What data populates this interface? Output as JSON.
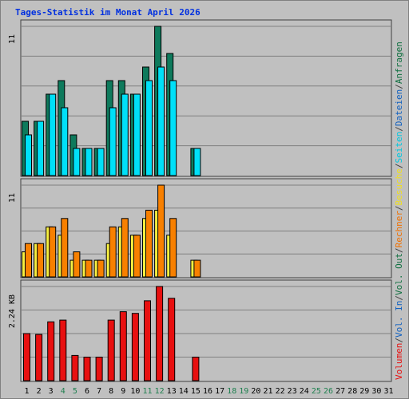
{
  "chart_data": {
    "type": "bar",
    "title": "Tages-Statistik im Monat April 2026",
    "categories": [
      "1",
      "2",
      "3",
      "4",
      "5",
      "6",
      "7",
      "8",
      "9",
      "10",
      "11",
      "12",
      "13",
      "14",
      "15",
      "16",
      "17",
      "18",
      "19",
      "20",
      "21",
      "22",
      "23",
      "24",
      "25",
      "26",
      "27",
      "28",
      "29",
      "30",
      "31"
    ],
    "weekend_days": [
      "4",
      "5",
      "11",
      "12",
      "18",
      "19",
      "25",
      "26"
    ],
    "panels": [
      {
        "id": "top",
        "ymax_label": "11",
        "ymax": 11,
        "series": [
          {
            "name": "Anfragen",
            "color": "#0e7a5c",
            "values": [
              4,
              4,
              6,
              7,
              3,
              2,
              2,
              7,
              7,
              6,
              8,
              11,
              9,
              0,
              2,
              0,
              0,
              0,
              0,
              0,
              0,
              0,
              0,
              0,
              0,
              0,
              0,
              0,
              0,
              0,
              0
            ]
          },
          {
            "name": "Dateien",
            "color": "#00e0f8",
            "values": [
              3,
              4,
              6,
              5,
              2,
              2,
              2,
              5,
              6,
              6,
              7,
              8,
              7,
              0,
              2,
              0,
              0,
              0,
              0,
              0,
              0,
              0,
              0,
              0,
              0,
              0,
              0,
              0,
              0,
              0,
              0
            ]
          }
        ]
      },
      {
        "id": "middle",
        "ymax_label": "11",
        "ymax": 11,
        "series": [
          {
            "name": "Besuche",
            "color": "#f8f040",
            "values": [
              3,
              4,
              6,
              5,
              2,
              2,
              2,
              4,
              6,
              5,
              7,
              8,
              5,
              0,
              2,
              0,
              0,
              0,
              0,
              0,
              0,
              0,
              0,
              0,
              0,
              0,
              0,
              0,
              0,
              0,
              0
            ]
          },
          {
            "name": "Rechner",
            "color": "#f88000",
            "values": [
              4,
              4,
              6,
              7,
              3,
              2,
              2,
              6,
              7,
              5,
              8,
              11,
              7,
              0,
              2,
              0,
              0,
              0,
              0,
              0,
              0,
              0,
              0,
              0,
              0,
              0,
              0,
              0,
              0,
              0,
              0
            ]
          }
        ]
      },
      {
        "id": "bottom",
        "ymax_label": "2.24 KB",
        "ymax": 2.24,
        "series": [
          {
            "name": "Volumen",
            "color": "#e81010",
            "values": [
              1.12,
              1.1,
              1.4,
              1.44,
              0.6,
              0.56,
              0.56,
              1.44,
              1.64,
              1.6,
              1.9,
              2.24,
              1.96,
              0,
              0.56,
              0,
              0,
              0,
              0,
              0,
              0,
              0,
              0,
              0,
              0,
              0,
              0,
              0,
              0,
              0,
              0
            ]
          }
        ]
      }
    ],
    "right_legend": [
      {
        "text": "Volumen",
        "color": "#e81010"
      },
      {
        "text": "/",
        "color": "#404040"
      },
      {
        "text": "Vol. In",
        "color": "#1060c0"
      },
      {
        "text": "/",
        "color": "#404040"
      },
      {
        "text": "Vol. Out",
        "color": "#107040"
      },
      {
        "text": "/",
        "color": "#404040"
      },
      {
        "text": "Rechner",
        "color": "#f07000"
      },
      {
        "text": "/",
        "color": "#404040"
      },
      {
        "text": "Besuche",
        "color": "#f0e020"
      },
      {
        "text": "/",
        "color": "#404040"
      },
      {
        "text": "Seiten",
        "color": "#00c8e0"
      },
      {
        "text": "/",
        "color": "#404040"
      },
      {
        "text": "Dateien",
        "color": "#1060c0"
      },
      {
        "text": "/",
        "color": "#404040"
      },
      {
        "text": "Anfragen",
        "color": "#107040"
      }
    ],
    "colors": {
      "title": "#0030e0",
      "weekday_label": "#000000",
      "weekend_label": "#208050",
      "plot_bg": "#c0c0c0",
      "gridline": "#808080"
    },
    "grid": true
  }
}
